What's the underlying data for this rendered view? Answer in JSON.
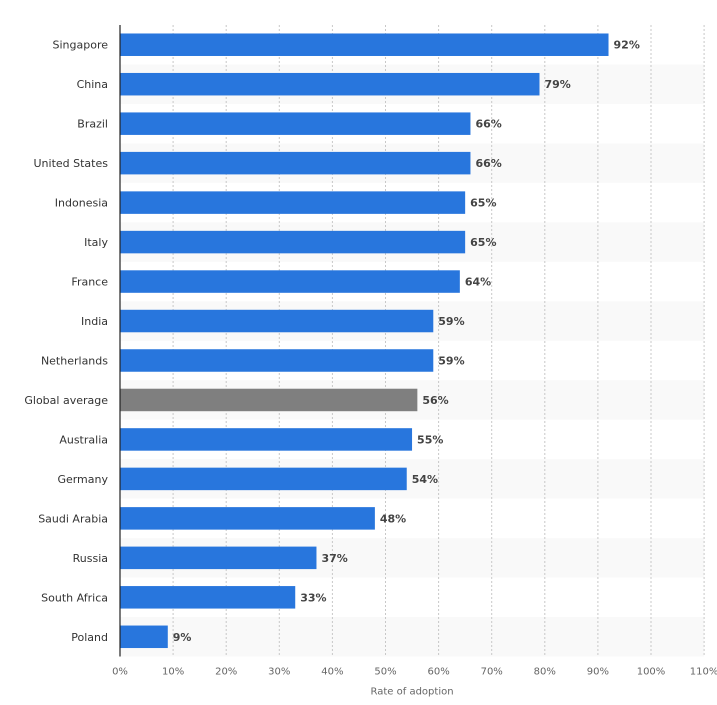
{
  "chart_data": {
    "type": "bar",
    "orientation": "horizontal",
    "categories": [
      "Singapore",
      "China",
      "Brazil",
      "United States",
      "Indonesia",
      "Italy",
      "France",
      "India",
      "Netherlands",
      "Global average",
      "Australia",
      "Germany",
      "Saudi Arabia",
      "Russia",
      "South Africa",
      "Poland"
    ],
    "values": [
      92,
      79,
      66,
      66,
      65,
      65,
      64,
      59,
      59,
      56,
      55,
      54,
      48,
      37,
      33,
      9
    ],
    "value_labels": [
      "92%",
      "79%",
      "66%",
      "66%",
      "65%",
      "65%",
      "64%",
      "59%",
      "59%",
      "56%",
      "55%",
      "54%",
      "48%",
      "37%",
      "33%",
      "9%"
    ],
    "highlight_category": "Global average",
    "xlabel": "Rate of adoption",
    "ylabel": "",
    "xlim": [
      0,
      110
    ],
    "xticks": [
      "0%",
      "10%",
      "20%",
      "30%",
      "40%",
      "50%",
      "60%",
      "70%",
      "80%",
      "90%",
      "100%",
      "110%"
    ],
    "grid": "vertical dotted",
    "colors": {
      "bar": "#2876dd",
      "highlight": "#7f7f7f",
      "row_band": "#f9f9f9"
    }
  }
}
